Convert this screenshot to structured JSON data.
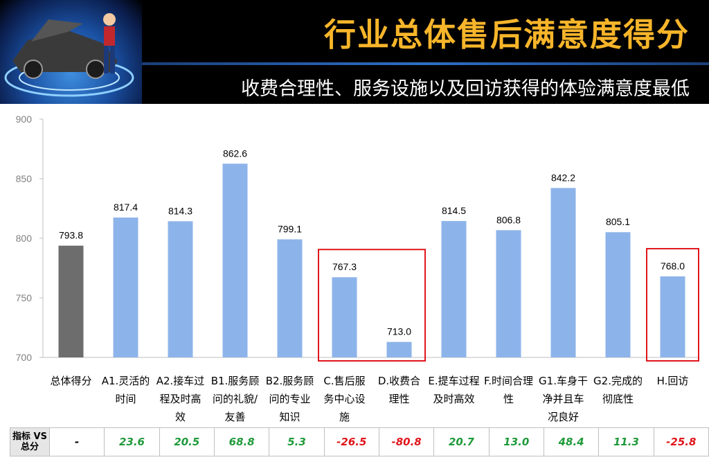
{
  "header": {
    "title": "行业总体售后满意度得分",
    "subtitle": "收费合理性、服务设施以及回访获得的体验满意度最低"
  },
  "colors": {
    "bar_overall": "#6d6d6d",
    "bar_item": "#8db4ea",
    "highlight_box": "#e0151b",
    "title": "#f7b52a",
    "positive": "#1f9a3a",
    "negative": "#e0151b"
  },
  "chart_data": {
    "type": "bar",
    "categories": [
      "总体得分",
      "A1.灵活的时间",
      "A2.接车过程及时高效",
      "B1.服务顾问的礼貌/友善",
      "B2.服务顾问的专业知识",
      "C.售后服务中心设施",
      "D.收费合理性",
      "E.提车过程及时高效",
      "F.时间合理性",
      "G1.车身干净并且车况良好",
      "G2.完成的彻底性",
      "H.回访"
    ],
    "category_lines": [
      [
        "总体得分"
      ],
      [
        "A1.灵活的",
        "时间"
      ],
      [
        "A2.接车过",
        "程及时高",
        "效"
      ],
      [
        "B1.服务顾",
        "问的礼貌/",
        "友善"
      ],
      [
        "B2.服务顾",
        "问的专业",
        "知识"
      ],
      [
        "C.售后服",
        "务中心设",
        "施"
      ],
      [
        "D.收费合",
        "理性"
      ],
      [
        "E.提车过程",
        "及时高效"
      ],
      [
        "F.时间合理",
        "性"
      ],
      [
        "G1.车身干",
        "净并且车",
        "况良好"
      ],
      [
        "G2.完成的",
        "彻底性"
      ],
      [
        "H.回访"
      ]
    ],
    "values": [
      793.8,
      817.4,
      814.3,
      862.6,
      799.1,
      767.3,
      713.0,
      814.5,
      806.8,
      842.2,
      805.1,
      768.0
    ],
    "value_labels": [
      "793.8",
      "817.4",
      "814.3",
      "862.6",
      "799.1",
      "767.3",
      "713.0",
      "814.5",
      "806.8",
      "842.2",
      "805.1",
      "768.0"
    ],
    "ylim": [
      700,
      900
    ],
    "yticks": [
      "700",
      "750",
      "800",
      "850",
      "900"
    ],
    "highlighted_indices": [
      [
        5,
        6
      ],
      [
        11,
        11
      ]
    ],
    "grid": false,
    "legend": "none"
  },
  "diff_row": {
    "header": [
      "指标 VS",
      "总分"
    ],
    "values": [
      "-",
      "23.6",
      "20.5",
      "68.8",
      "5.3",
      "-26.5",
      "-80.8",
      "20.7",
      "13.0",
      "48.4",
      "11.3",
      "-25.8"
    ]
  }
}
